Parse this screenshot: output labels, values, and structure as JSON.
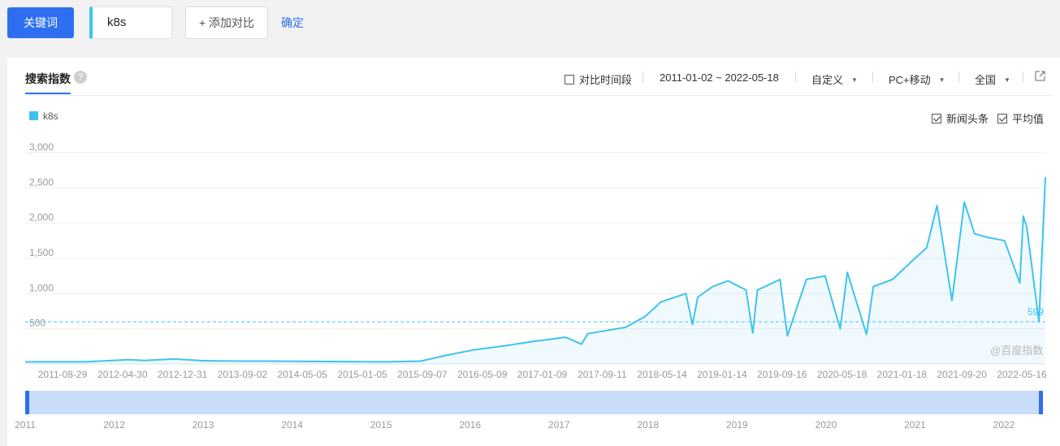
{
  "toolbar": {
    "keyword_button": "关键词",
    "keyword_value": "k8s",
    "add_compare": "+ 添加对比",
    "confirm": "确定"
  },
  "panel": {
    "tab": "搜索指数",
    "help": "?",
    "compare_period": "对比时间段",
    "date_range": "2011-01-02 ~ 2022-05-18",
    "custom": "自定义",
    "device": "PC+移动",
    "region": "全国",
    "news_headline": "新闻头条",
    "average": "平均值",
    "watermark": "@百度指数"
  },
  "colors": {
    "accent": "#2e6ff2",
    "series": "#3ec3ef"
  },
  "chart_data": {
    "type": "line",
    "title": "",
    "xlabel": "",
    "ylabel": "",
    "ylim": [
      0,
      3000
    ],
    "yticks": [
      500,
      1000,
      1500,
      2000,
      2500,
      3000
    ],
    "ytick_labels": [
      "500",
      "1,000",
      "1,500",
      "2,000",
      "2,500",
      "3,000"
    ],
    "xtick_labels": [
      "2011-08-29",
      "2012-04-30",
      "2012-12-31",
      "2013-09-02",
      "2014-05-05",
      "2015-01-05",
      "2015-09-07",
      "2016-05-09",
      "2017-01-09",
      "2017-09-11",
      "2018-05-14",
      "2019-01-14",
      "2019-09-16",
      "2020-05-18",
      "2021-01-18",
      "2021-09-20",
      "2022-05-16"
    ],
    "navigator_years": [
      "2011",
      "2012",
      "2013",
      "2014",
      "2015",
      "2016",
      "2017",
      "2018",
      "2019",
      "2020",
      "2021",
      "2022"
    ],
    "average": 599,
    "average_label": "599",
    "legend": "top-left",
    "grid": true,
    "series": [
      {
        "name": "k8s",
        "x": [
          "2011-01-02",
          "2011-08-29",
          "2012-03-01",
          "2012-04-30",
          "2012-09-01",
          "2012-12-31",
          "2013-06-01",
          "2013-09-02",
          "2014-05-05",
          "2015-01-05",
          "2015-06-01",
          "2015-09-07",
          "2016-01-01",
          "2016-05-09",
          "2016-09-01",
          "2017-01-09",
          "2017-03-15",
          "2017-04-10",
          "2017-09-11",
          "2017-12-01",
          "2018-02-01",
          "2018-05-14",
          "2018-06-10",
          "2018-07-01",
          "2018-09-01",
          "2018-11-01",
          "2019-01-14",
          "2019-02-10",
          "2019-03-01",
          "2019-06-01",
          "2019-07-01",
          "2019-09-16",
          "2019-12-01",
          "2020-02-01",
          "2020-03-01",
          "2020-05-18",
          "2020-06-15",
          "2020-09-01",
          "2020-12-01",
          "2021-01-18",
          "2021-03-01",
          "2021-05-01",
          "2021-06-20",
          "2021-08-01",
          "2021-09-20",
          "2021-12-01",
          "2022-02-01",
          "2022-02-15",
          "2022-03-01",
          "2022-04-20",
          "2022-05-16"
        ],
        "values": [
          30,
          30,
          60,
          50,
          70,
          45,
          40,
          40,
          35,
          30,
          40,
          120,
          200,
          260,
          320,
          380,
          280,
          430,
          520,
          680,
          880,
          1000,
          560,
          950,
          1100,
          1180,
          1050,
          440,
          1050,
          1200,
          400,
          1200,
          1250,
          500,
          1300,
          420,
          1100,
          1200,
          1500,
          1650,
          2250,
          900,
          2300,
          1850,
          1800,
          1750,
          1150,
          2100,
          1950,
          600,
          2650
        ]
      }
    ]
  }
}
